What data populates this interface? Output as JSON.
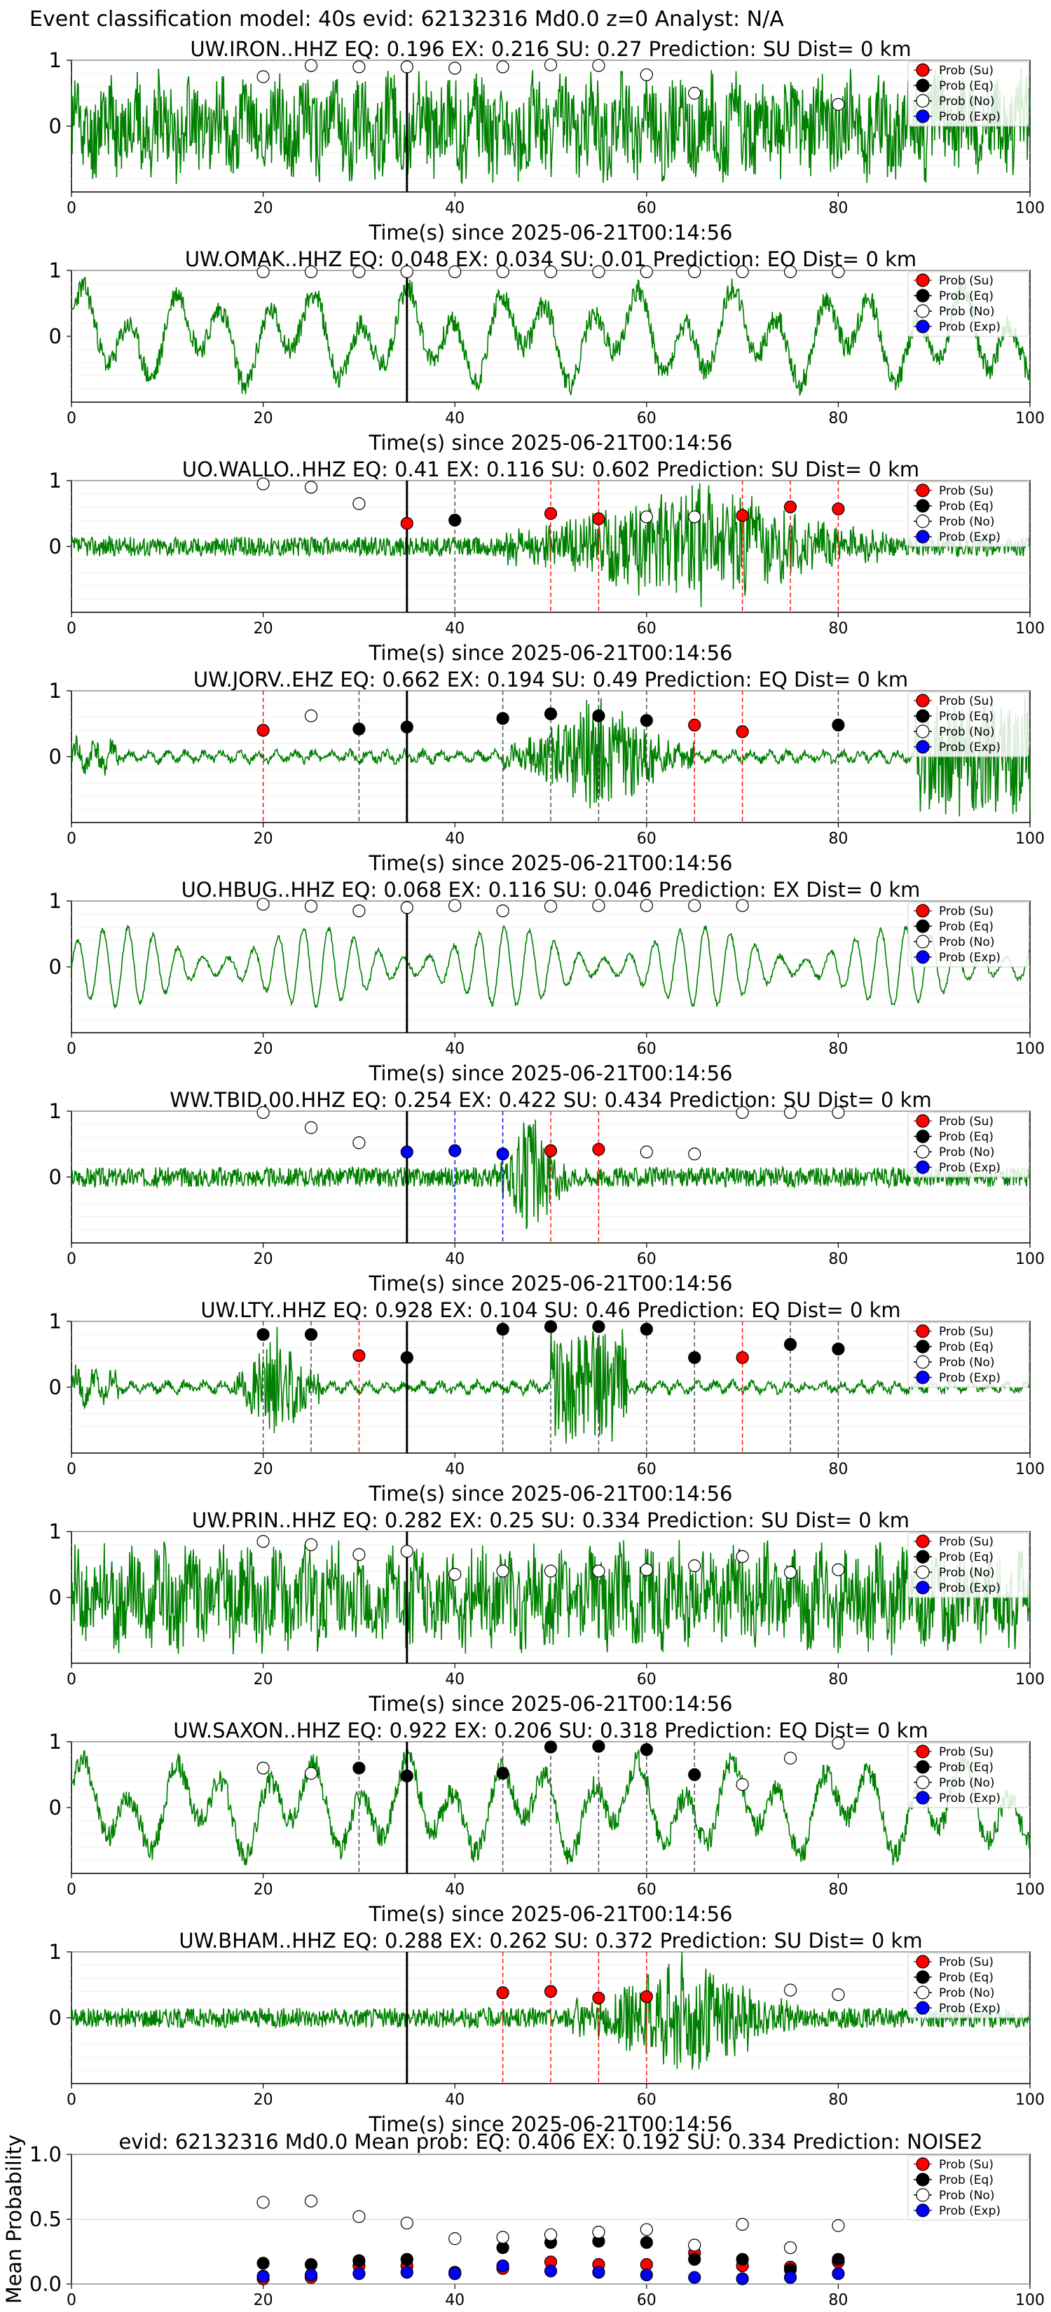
{
  "figure": {
    "suptitle": "Event classification model: 40s evid: 62132316 Md0.0 z=0 Analyst: N/A",
    "colors": {
      "waveform": "#008000",
      "su": "#ff0000",
      "eq": "#000000",
      "no": "#ffffff",
      "exp": "#0000ff",
      "pick": "#000000"
    },
    "legend_labels": [
      "Prob (Su)",
      "Prob (Eq)",
      "Prob (No)",
      "Prob (Exp)"
    ],
    "legend_placement": "top-right"
  },
  "chart_data": [
    {
      "type": "line",
      "station": "UW.IRON..HHZ",
      "title": "UW.IRON..HHZ   EQ: 0.196  EX: 0.216  SU: 0.27   Prediction: SU    Dist= 0 km",
      "xlabel": "Time(s) since 2025-06-21T00:14:56",
      "xlim": [
        0,
        100
      ],
      "ylim": [
        -1,
        1
      ],
      "xticks": [
        0,
        20,
        40,
        60,
        80,
        100
      ],
      "yticks": [
        0,
        1
      ],
      "pick_time": 35,
      "waveform": "dense",
      "wf_seed": 11,
      "markers": [
        {
          "t": 20,
          "cls": "No",
          "p": 0.75
        },
        {
          "t": 25,
          "cls": "No",
          "p": 0.92
        },
        {
          "t": 30,
          "cls": "No",
          "p": 0.9
        },
        {
          "t": 35,
          "cls": "No",
          "p": 0.9
        },
        {
          "t": 40,
          "cls": "No",
          "p": 0.88
        },
        {
          "t": 45,
          "cls": "No",
          "p": 0.9
        },
        {
          "t": 50,
          "cls": "No",
          "p": 0.93
        },
        {
          "t": 55,
          "cls": "No",
          "p": 0.92
        },
        {
          "t": 60,
          "cls": "No",
          "p": 0.78
        },
        {
          "t": 65,
          "cls": "No",
          "p": 0.5
        },
        {
          "t": 80,
          "cls": "No",
          "p": 0.33
        }
      ]
    },
    {
      "type": "line",
      "station": "UW.OMAK..HHZ",
      "title": "UW.OMAK..HHZ   EQ: 0.048  EX: 0.034  SU: 0.01   Prediction: EQ    Dist= 0 km",
      "xlabel": "Time(s) since 2025-06-21T00:14:56",
      "xlim": [
        0,
        100
      ],
      "ylim": [
        -1,
        1
      ],
      "xticks": [
        0,
        20,
        40,
        60,
        80,
        100
      ],
      "yticks": [
        0,
        1
      ],
      "pick_time": 35,
      "waveform": "slow",
      "wf_seed": 23,
      "markers": [
        {
          "t": 20,
          "cls": "No",
          "p": 0.98
        },
        {
          "t": 25,
          "cls": "No",
          "p": 0.98
        },
        {
          "t": 30,
          "cls": "No",
          "p": 0.98
        },
        {
          "t": 35,
          "cls": "No",
          "p": 0.98
        },
        {
          "t": 40,
          "cls": "No",
          "p": 0.98
        },
        {
          "t": 45,
          "cls": "No",
          "p": 0.98
        },
        {
          "t": 50,
          "cls": "No",
          "p": 0.98
        },
        {
          "t": 55,
          "cls": "No",
          "p": 0.98
        },
        {
          "t": 60,
          "cls": "No",
          "p": 0.98
        },
        {
          "t": 65,
          "cls": "No",
          "p": 0.98
        },
        {
          "t": 70,
          "cls": "No",
          "p": 0.98
        },
        {
          "t": 75,
          "cls": "No",
          "p": 0.98
        },
        {
          "t": 80,
          "cls": "No",
          "p": 0.98
        }
      ]
    },
    {
      "type": "line",
      "station": "UO.WALLO..HHZ",
      "title": "UO.WALLO..HHZ   EQ: 0.41  EX: 0.116  SU: 0.602   Prediction: SU    Dist= 0 km",
      "xlabel": "Time(s) since 2025-06-21T00:14:56",
      "xlim": [
        0,
        100
      ],
      "ylim": [
        -1,
        1
      ],
      "xticks": [
        0,
        20,
        40,
        60,
        80,
        100
      ],
      "yticks": [
        0,
        1
      ],
      "pick_time": 35,
      "waveform": "burst",
      "wf_seed": 37,
      "burst": [
        45,
        85
      ],
      "markers": [
        {
          "t": 20,
          "cls": "No",
          "p": 0.95
        },
        {
          "t": 25,
          "cls": "No",
          "p": 0.9
        },
        {
          "t": 30,
          "cls": "No",
          "p": 0.65
        },
        {
          "t": 35,
          "cls": "Su",
          "p": 0.35
        },
        {
          "t": 40,
          "cls": "Eq",
          "p": 0.4
        },
        {
          "t": 50,
          "cls": "Su",
          "p": 0.5
        },
        {
          "t": 55,
          "cls": "Su",
          "p": 0.42
        },
        {
          "t": 60,
          "cls": "No",
          "p": 0.45
        },
        {
          "t": 65,
          "cls": "No",
          "p": 0.45
        },
        {
          "t": 70,
          "cls": "Su",
          "p": 0.47
        },
        {
          "t": 75,
          "cls": "Su",
          "p": 0.6
        },
        {
          "t": 80,
          "cls": "Su",
          "p": 0.57
        }
      ]
    },
    {
      "type": "line",
      "station": "UW.JORV..EHZ",
      "title": "UW.JORV..EHZ   EQ: 0.662  EX: 0.194  SU: 0.49   Prediction: EQ    Dist= 0 km",
      "xlabel": "Time(s) since 2025-06-21T00:14:56",
      "xlim": [
        0,
        100
      ],
      "ylim": [
        -1,
        1
      ],
      "xticks": [
        0,
        20,
        40,
        60,
        80,
        100
      ],
      "yticks": [
        0,
        1
      ],
      "pick_time": 35,
      "waveform": "quiet",
      "wf_seed": 41,
      "burst": [
        45,
        65
      ],
      "burst2": [
        88,
        100
      ],
      "markers": [
        {
          "t": 20,
          "cls": "Su",
          "p": 0.4
        },
        {
          "t": 25,
          "cls": "No",
          "p": 0.62
        },
        {
          "t": 30,
          "cls": "Eq",
          "p": 0.42
        },
        {
          "t": 35,
          "cls": "Eq",
          "p": 0.45
        },
        {
          "t": 45,
          "cls": "Eq",
          "p": 0.58
        },
        {
          "t": 50,
          "cls": "Eq",
          "p": 0.65
        },
        {
          "t": 55,
          "cls": "Eq",
          "p": 0.62
        },
        {
          "t": 60,
          "cls": "Eq",
          "p": 0.55
        },
        {
          "t": 65,
          "cls": "Su",
          "p": 0.48
        },
        {
          "t": 70,
          "cls": "Su",
          "p": 0.38
        },
        {
          "t": 80,
          "cls": "Eq",
          "p": 0.48
        }
      ]
    },
    {
      "type": "line",
      "station": "UO.HBUG..HHZ",
      "title": "UO.HBUG..HHZ   EQ: 0.068  EX: 0.116  SU: 0.046   Prediction: EX    Dist= 0 km",
      "xlabel": "Time(s) since 2025-06-21T00:14:56",
      "xlim": [
        0,
        100
      ],
      "ylim": [
        -1,
        1
      ],
      "xticks": [
        0,
        20,
        40,
        60,
        80,
        100
      ],
      "yticks": [
        0,
        1
      ],
      "pick_time": 35,
      "waveform": "sine",
      "wf_seed": 53,
      "markers": [
        {
          "t": 20,
          "cls": "No",
          "p": 0.95
        },
        {
          "t": 25,
          "cls": "No",
          "p": 0.92
        },
        {
          "t": 30,
          "cls": "No",
          "p": 0.85
        },
        {
          "t": 35,
          "cls": "No",
          "p": 0.9
        },
        {
          "t": 40,
          "cls": "No",
          "p": 0.93
        },
        {
          "t": 45,
          "cls": "No",
          "p": 0.85
        },
        {
          "t": 50,
          "cls": "No",
          "p": 0.92
        },
        {
          "t": 55,
          "cls": "No",
          "p": 0.93
        },
        {
          "t": 60,
          "cls": "No",
          "p": 0.93
        },
        {
          "t": 65,
          "cls": "No",
          "p": 0.93
        },
        {
          "t": 70,
          "cls": "No",
          "p": 0.93
        }
      ]
    },
    {
      "type": "line",
      "station": "WW.TBID.00.HHZ",
      "title": "WW.TBID.00.HHZ   EQ: 0.254  EX: 0.422  SU: 0.434   Prediction: SU    Dist= 0 km",
      "xlabel": "Time(s) since 2025-06-21T00:14:56",
      "xlim": [
        0,
        100
      ],
      "ylim": [
        -1,
        1
      ],
      "xticks": [
        0,
        20,
        40,
        60,
        80,
        100
      ],
      "yticks": [
        0,
        1
      ],
      "pick_time": 35,
      "waveform": "burst",
      "wf_seed": 67,
      "burst": [
        44,
        52
      ],
      "markers": [
        {
          "t": 20,
          "cls": "No",
          "p": 0.98
        },
        {
          "t": 25,
          "cls": "No",
          "p": 0.75
        },
        {
          "t": 30,
          "cls": "No",
          "p": 0.52
        },
        {
          "t": 35,
          "cls": "Exp",
          "p": 0.38
        },
        {
          "t": 40,
          "cls": "Exp",
          "p": 0.4
        },
        {
          "t": 45,
          "cls": "Exp",
          "p": 0.35
        },
        {
          "t": 50,
          "cls": "Su",
          "p": 0.4
        },
        {
          "t": 55,
          "cls": "Su",
          "p": 0.42
        },
        {
          "t": 60,
          "cls": "No",
          "p": 0.38
        },
        {
          "t": 65,
          "cls": "No",
          "p": 0.35
        },
        {
          "t": 70,
          "cls": "No",
          "p": 0.98
        },
        {
          "t": 75,
          "cls": "No",
          "p": 0.98
        },
        {
          "t": 80,
          "cls": "No",
          "p": 0.98
        }
      ]
    },
    {
      "type": "line",
      "station": "UW.LTY..HHZ",
      "title": "UW.LTY..HHZ   EQ: 0.928  EX: 0.104  SU: 0.46   Prediction: EQ    Dist= 0 km",
      "xlabel": "Time(s) since 2025-06-21T00:14:56",
      "xlim": [
        0,
        100
      ],
      "ylim": [
        -1,
        1
      ],
      "xticks": [
        0,
        20,
        40,
        60,
        80,
        100
      ],
      "yticks": [
        0,
        1
      ],
      "pick_time": 35,
      "waveform": "quiet",
      "wf_seed": 79,
      "burst": [
        17,
        26
      ],
      "burst2": [
        50,
        58
      ],
      "markers": [
        {
          "t": 20,
          "cls": "Eq",
          "p": 0.8
        },
        {
          "t": 25,
          "cls": "Eq",
          "p": 0.8
        },
        {
          "t": 30,
          "cls": "Su",
          "p": 0.48
        },
        {
          "t": 35,
          "cls": "Eq",
          "p": 0.45
        },
        {
          "t": 45,
          "cls": "Eq",
          "p": 0.88
        },
        {
          "t": 50,
          "cls": "Eq",
          "p": 0.92
        },
        {
          "t": 55,
          "cls": "Eq",
          "p": 0.92
        },
        {
          "t": 60,
          "cls": "Eq",
          "p": 0.88
        },
        {
          "t": 65,
          "cls": "Eq",
          "p": 0.45
        },
        {
          "t": 70,
          "cls": "Su",
          "p": 0.45
        },
        {
          "t": 75,
          "cls": "Eq",
          "p": 0.65
        },
        {
          "t": 80,
          "cls": "Eq",
          "p": 0.58
        }
      ]
    },
    {
      "type": "line",
      "station": "UW.PRIN..HHZ",
      "title": "UW.PRIN..HHZ   EQ: 0.282  EX: 0.25  SU: 0.334   Prediction: SU    Dist= 0 km",
      "xlabel": "Time(s) since 2025-06-21T00:14:56",
      "xlim": [
        0,
        100
      ],
      "ylim": [
        -1,
        1
      ],
      "xticks": [
        0,
        20,
        40,
        60,
        80,
        100
      ],
      "yticks": [
        0,
        1
      ],
      "pick_time": 35,
      "waveform": "dense",
      "wf_seed": 83,
      "markers": [
        {
          "t": 20,
          "cls": "No",
          "p": 0.85
        },
        {
          "t": 25,
          "cls": "No",
          "p": 0.8
        },
        {
          "t": 30,
          "cls": "No",
          "p": 0.65
        },
        {
          "t": 35,
          "cls": "No",
          "p": 0.7
        },
        {
          "t": 40,
          "cls": "No",
          "p": 0.35
        },
        {
          "t": 45,
          "cls": "No",
          "p": 0.4
        },
        {
          "t": 50,
          "cls": "No",
          "p": 0.4
        },
        {
          "t": 55,
          "cls": "No",
          "p": 0.4
        },
        {
          "t": 60,
          "cls": "No",
          "p": 0.42
        },
        {
          "t": 65,
          "cls": "No",
          "p": 0.48
        },
        {
          "t": 70,
          "cls": "No",
          "p": 0.62
        },
        {
          "t": 75,
          "cls": "No",
          "p": 0.38
        },
        {
          "t": 80,
          "cls": "No",
          "p": 0.42
        }
      ]
    },
    {
      "type": "line",
      "station": "UW.SAXON..HHZ",
      "title": "UW.SAXON..HHZ   EQ: 0.922  EX: 0.206  SU: 0.318   Prediction: EQ    Dist= 0 km",
      "xlabel": "Time(s) since 2025-06-21T00:14:56",
      "xlim": [
        0,
        100
      ],
      "ylim": [
        -1,
        1
      ],
      "xticks": [
        0,
        20,
        40,
        60,
        80,
        100
      ],
      "yticks": [
        0,
        1
      ],
      "pick_time": 35,
      "waveform": "slow",
      "wf_seed": 97,
      "markers": [
        {
          "t": 20,
          "cls": "No",
          "p": 0.6
        },
        {
          "t": 25,
          "cls": "No",
          "p": 0.52
        },
        {
          "t": 30,
          "cls": "Eq",
          "p": 0.6
        },
        {
          "t": 35,
          "cls": "Eq",
          "p": 0.48
        },
        {
          "t": 45,
          "cls": "Eq",
          "p": 0.52
        },
        {
          "t": 50,
          "cls": "Eq",
          "p": 0.92
        },
        {
          "t": 55,
          "cls": "Eq",
          "p": 0.93
        },
        {
          "t": 60,
          "cls": "Eq",
          "p": 0.88
        },
        {
          "t": 65,
          "cls": "Eq",
          "p": 0.5
        },
        {
          "t": 70,
          "cls": "No",
          "p": 0.35
        },
        {
          "t": 75,
          "cls": "No",
          "p": 0.75
        },
        {
          "t": 80,
          "cls": "No",
          "p": 0.98
        }
      ]
    },
    {
      "type": "line",
      "station": "UW.BHAM..HHZ",
      "title": "UW.BHAM..HHZ   EQ: 0.288  EX: 0.262  SU: 0.372   Prediction: SU    Dist= 0 km",
      "xlabel": "Time(s) since 2025-06-21T00:14:56",
      "xlim": [
        0,
        100
      ],
      "ylim": [
        -1,
        1
      ],
      "xticks": [
        0,
        20,
        40,
        60,
        80,
        100
      ],
      "yticks": [
        0,
        1
      ],
      "pick_time": 35,
      "waveform": "burst",
      "wf_seed": 101,
      "burst": [
        52,
        76
      ],
      "markers": [
        {
          "t": 45,
          "cls": "Su",
          "p": 0.38
        },
        {
          "t": 50,
          "cls": "Su",
          "p": 0.4
        },
        {
          "t": 55,
          "cls": "Su",
          "p": 0.3
        },
        {
          "t": 60,
          "cls": "Su",
          "p": 0.32
        },
        {
          "t": 75,
          "cls": "No",
          "p": 0.42
        },
        {
          "t": 80,
          "cls": "No",
          "p": 0.35
        }
      ]
    },
    {
      "type": "scatter",
      "summary": true,
      "title": "evid: 62132316  Md0.0  Mean prob:   EQ: 0.406  EX: 0.192  SU: 0.334   Prediction: NOISE2",
      "ylabel": "Mean Probability",
      "xlim": [
        0,
        100
      ],
      "ylim": [
        0,
        1
      ],
      "xticks": [
        0,
        20,
        40,
        60,
        80,
        100
      ],
      "yticks": [
        0.0,
        0.5,
        1.0
      ],
      "ytick_labels": [
        "0.0",
        "0.5",
        "1.0"
      ],
      "series": [
        {
          "name": "Prob (Su)",
          "cls": "Su",
          "x": [
            20,
            25,
            30,
            35,
            40,
            45,
            50,
            55,
            60,
            65,
            70,
            75,
            80
          ],
          "y": [
            0.04,
            0.05,
            0.14,
            0.14,
            0.08,
            0.12,
            0.17,
            0.15,
            0.15,
            0.24,
            0.14,
            0.13,
            0.17
          ]
        },
        {
          "name": "Prob (Eq)",
          "cls": "Eq",
          "x": [
            20,
            25,
            30,
            35,
            40,
            45,
            50,
            55,
            60,
            65,
            70,
            75,
            80
          ],
          "y": [
            0.16,
            0.15,
            0.18,
            0.19,
            0.09,
            0.28,
            0.32,
            0.33,
            0.32,
            0.19,
            0.19,
            0.11,
            0.19
          ]
        },
        {
          "name": "Prob (No)",
          "cls": "No",
          "x": [
            20,
            25,
            30,
            35,
            40,
            45,
            50,
            55,
            60,
            65,
            70,
            75,
            80
          ],
          "y": [
            0.63,
            0.64,
            0.52,
            0.47,
            0.35,
            0.36,
            0.38,
            0.4,
            0.42,
            0.3,
            0.46,
            0.28,
            0.45
          ]
        },
        {
          "name": "Prob (Exp)",
          "cls": "Exp",
          "x": [
            20,
            25,
            30,
            35,
            40,
            45,
            50,
            55,
            60,
            65,
            70,
            75,
            80
          ],
          "y": [
            0.06,
            0.07,
            0.08,
            0.09,
            0.08,
            0.14,
            0.1,
            0.09,
            0.07,
            0.05,
            0.04,
            0.05,
            0.08
          ]
        }
      ]
    }
  ]
}
